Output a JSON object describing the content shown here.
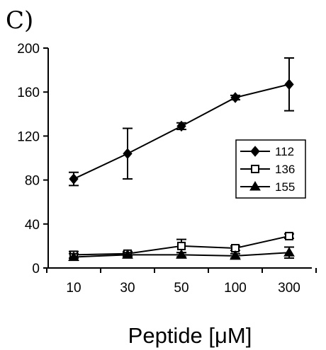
{
  "panel_label": "C)",
  "chart_data": {
    "type": "line",
    "title": "",
    "xlabel": "Peptide [μM]",
    "ylabel": "",
    "categories": [
      "10",
      "30",
      "50",
      "100",
      "300"
    ],
    "ylim": [
      0,
      200
    ],
    "yticks": [
      "0",
      "40",
      "80",
      "120",
      "160",
      "200"
    ],
    "grid": false,
    "legend_position": "right",
    "series": [
      {
        "name": "112",
        "marker": "filled-diamond",
        "color": "#000000",
        "values": [
          81,
          104,
          129,
          155,
          167
        ],
        "error": [
          6,
          23,
          3,
          2,
          24
        ]
      },
      {
        "name": "136",
        "marker": "open-square",
        "color": "#000000",
        "values": [
          12,
          13,
          20,
          18,
          29
        ],
        "error": [
          3,
          2,
          6,
          2,
          2
        ]
      },
      {
        "name": "155",
        "marker": "filled-triangle",
        "color": "#000000",
        "values": [
          10,
          12,
          12,
          11,
          14
        ],
        "error": [
          3,
          2,
          2,
          2,
          5
        ]
      }
    ]
  }
}
